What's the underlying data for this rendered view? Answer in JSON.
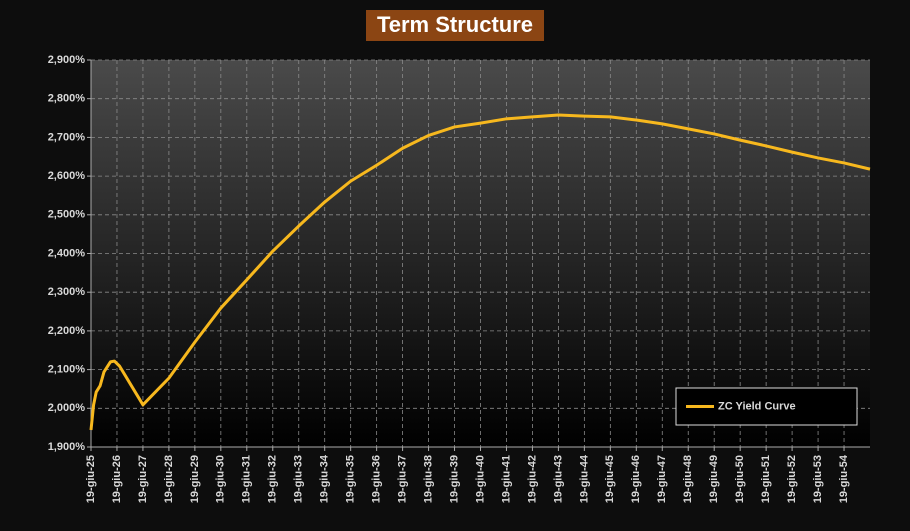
{
  "chart_data": {
    "type": "line",
    "title": "Term Structure",
    "x": [
      25,
      25.1,
      25.2,
      25.35,
      25.5,
      25.75,
      25.9,
      26.1,
      27,
      28,
      29,
      30,
      31,
      32,
      33,
      34,
      35,
      36,
      37,
      38,
      39,
      40,
      41,
      42,
      43,
      44,
      45,
      46,
      47,
      48,
      49,
      50,
      51,
      52,
      53,
      54,
      55
    ],
    "series": [
      {
        "name": "ZC Yield Curve",
        "color": "#f7b81e",
        "values": [
          1.944,
          2.009,
          2.042,
          2.058,
          2.094,
          2.12,
          2.122,
          2.109,
          2.009,
          2.078,
          2.171,
          2.259,
          2.332,
          2.406,
          2.471,
          2.533,
          2.587,
          2.628,
          2.672,
          2.705,
          2.727,
          2.737,
          2.748,
          2.753,
          2.758,
          2.755,
          2.753,
          2.745,
          2.735,
          2.722,
          2.709,
          2.693,
          2.678,
          2.662,
          2.647,
          2.634,
          2.618
        ]
      }
    ],
    "xlim": [
      25,
      55
    ],
    "xticks": [
      {
        "value": 25,
        "label": "19-giu-25"
      },
      {
        "value": 26,
        "label": "19-giu-26"
      },
      {
        "value": 27,
        "label": "19-giu-27"
      },
      {
        "value": 28,
        "label": "19-giu-28"
      },
      {
        "value": 29,
        "label": "19-giu-29"
      },
      {
        "value": 30,
        "label": "19-giu-30"
      },
      {
        "value": 31,
        "label": "19-giu-31"
      },
      {
        "value": 32,
        "label": "19-giu-32"
      },
      {
        "value": 33,
        "label": "19-giu-33"
      },
      {
        "value": 34,
        "label": "19-giu-34"
      },
      {
        "value": 35,
        "label": "19-giu-35"
      },
      {
        "value": 36,
        "label": "19-giu-36"
      },
      {
        "value": 37,
        "label": "19-giu-37"
      },
      {
        "value": 38,
        "label": "19-giu-38"
      },
      {
        "value": 39,
        "label": "19-giu-39"
      },
      {
        "value": 40,
        "label": "19-giu-40"
      },
      {
        "value": 41,
        "label": "19-giu-41"
      },
      {
        "value": 42,
        "label": "19-giu-42"
      },
      {
        "value": 43,
        "label": "19-giu-43"
      },
      {
        "value": 44,
        "label": "19-giu-44"
      },
      {
        "value": 45,
        "label": "19-giu-45"
      },
      {
        "value": 46,
        "label": "19-giu-46"
      },
      {
        "value": 47,
        "label": "19-giu-47"
      },
      {
        "value": 48,
        "label": "19-giu-48"
      },
      {
        "value": 49,
        "label": "19-giu-49"
      },
      {
        "value": 50,
        "label": "19-giu-50"
      },
      {
        "value": 51,
        "label": "19-giu-51"
      },
      {
        "value": 52,
        "label": "19-giu-52"
      },
      {
        "value": 53,
        "label": "19-giu-53"
      },
      {
        "value": 54,
        "label": "19-giu-54"
      }
    ],
    "ylim": [
      1.9,
      2.9
    ],
    "yticks": [
      {
        "value": 1.9,
        "label": "1,900%"
      },
      {
        "value": 2.0,
        "label": "2,000%"
      },
      {
        "value": 2.1,
        "label": "2,100%"
      },
      {
        "value": 2.2,
        "label": "2,200%"
      },
      {
        "value": 2.3,
        "label": "2,300%"
      },
      {
        "value": 2.4,
        "label": "2,400%"
      },
      {
        "value": 2.5,
        "label": "2,500%"
      },
      {
        "value": 2.6,
        "label": "2,600%"
      },
      {
        "value": 2.7,
        "label": "2,700%"
      },
      {
        "value": 2.8,
        "label": "2,800%"
      },
      {
        "value": 2.9,
        "label": "2,900%"
      }
    ],
    "grid": true,
    "legend": "lower right"
  }
}
